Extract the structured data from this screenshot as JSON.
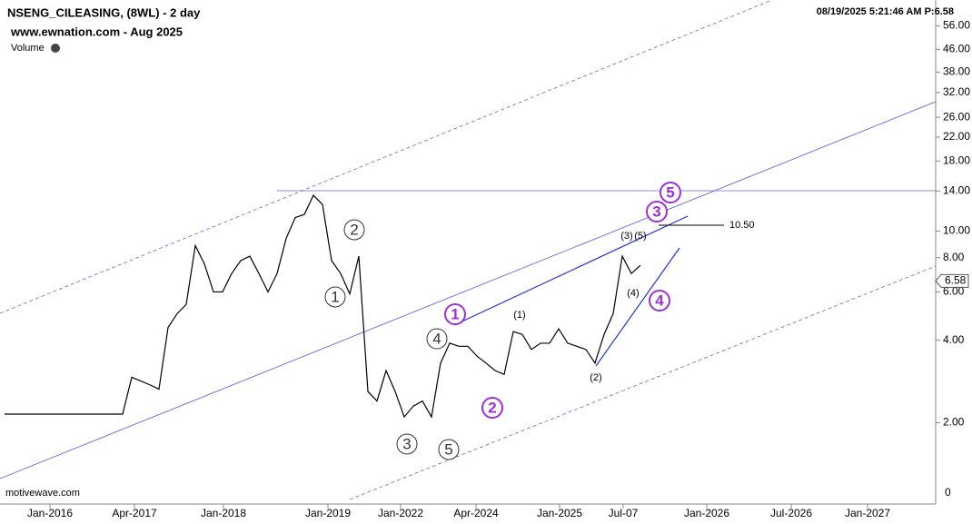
{
  "chart_data": {
    "type": "line",
    "title": "NSENG_CILEASING, (8WL) - 2 day",
    "subtitle": "www.ewnation.com  - Aug 2025",
    "volume_label": "Volume",
    "timestamp": "08/19/2025 5:21:46 AM  P:6.58",
    "footer": "motivewave.com",
    "log_scale": true,
    "color": "#000000",
    "ylim": [
      1.05,
      69.6
    ],
    "yticks": [
      {
        "value": 56,
        "label": "56.00"
      },
      {
        "value": 46,
        "label": "46.00"
      },
      {
        "value": 38,
        "label": "38.00"
      },
      {
        "value": 32,
        "label": "32.00"
      },
      {
        "value": 26,
        "label": "26.00"
      },
      {
        "value": 22,
        "label": "22.00"
      },
      {
        "value": 18,
        "label": "18.00"
      },
      {
        "value": 14,
        "label": "14.00"
      },
      {
        "value": 10,
        "label": "10.00"
      },
      {
        "value": 8,
        "label": "8.00"
      },
      {
        "value": 6,
        "label": "6.00"
      },
      {
        "value": 4,
        "label": "4.00"
      },
      {
        "value": 2,
        "label": "2.00"
      }
    ],
    "ybottom_label": "0",
    "x_labels": [
      "Jan-2016",
      "Apr-2017",
      "Jan-2018",
      "Jan-2019",
      "Jan-2022",
      "Apr-2024",
      "Jan-2025",
      "Jul-07",
      "Jan-2026",
      "Jul-2026",
      "Jan-2027"
    ],
    "values": [
      2.15,
      2.15,
      2.15,
      2.15,
      2.15,
      2.15,
      2.15,
      2.15,
      2.15,
      2.15,
      2.15,
      2.15,
      2.15,
      2.15,
      2.93,
      2.84,
      2.75,
      2.65,
      4.45,
      5.0,
      5.4,
      8.85,
      7.6,
      6.0,
      6.0,
      7.0,
      7.8,
      8.1,
      7.0,
      6.0,
      7.0,
      9.4,
      11.2,
      11.5,
      13.5,
      12.5,
      7.8,
      7.0,
      5.9,
      8.1,
      2.6,
      2.4,
      3.1,
      2.6,
      2.1,
      2.3,
      2.4,
      2.1,
      3.3,
      3.9,
      3.8,
      3.8,
      3.5,
      3.3,
      3.1,
      3.0,
      4.3,
      4.2,
      3.7,
      3.9,
      3.9,
      4.4,
      3.9,
      3.8,
      3.7,
      3.3,
      4.2,
      5.0,
      8.1,
      7.0,
      7.5
    ],
    "last_price": 6.58,
    "level": {
      "value": 10.5,
      "label": "10.50"
    },
    "wave_labels": [
      "1",
      "2",
      "3",
      "4",
      "5"
    ],
    "major_wave_labels": [
      "1",
      "2",
      "3",
      "4",
      "5"
    ],
    "minor_wave_labels": [
      "(1)",
      "(2)",
      "(3)",
      "(5)",
      "(4)"
    ],
    "major_color": "#9b30d9"
  }
}
